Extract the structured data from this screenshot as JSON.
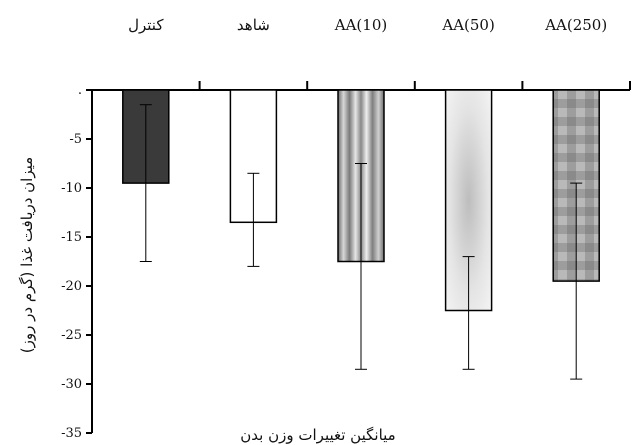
{
  "chart_data": {
    "type": "bar",
    "title": "",
    "xlabel": "میانگین تغییرات وزن بدن",
    "ylabel": "میزان دریافت غذا (گرم در روز)",
    "categories": [
      "کنترل",
      "شاهد",
      "AA(10)",
      "AA(50)",
      "AA(250)"
    ],
    "values": [
      -9.5,
      -13.5,
      -17.5,
      -22.5,
      -19.5
    ],
    "error_low": [
      -17.5,
      -18.0,
      -28.5,
      -28.5,
      -29.5
    ],
    "error_high": [
      -1.5,
      -8.5,
      -7.5,
      -17.0,
      -9.5
    ],
    "ylim": [
      -35,
      0
    ],
    "yticks": [
      0,
      -5,
      -10,
      -15,
      -20,
      -25,
      -30,
      -35
    ],
    "ytick_labels": [
      ".",
      "-5",
      "-10",
      "-15",
      "-20",
      "-25",
      "-30",
      "-35"
    ],
    "grid": false,
    "legend": "none",
    "x_axis_position": "top"
  },
  "colors": {
    "bar_fills": [
      "#3a3a3a",
      "#ffffff",
      "vertical-gradient-gray",
      "radial-light-gray",
      "checker-gray"
    ],
    "axis": "#000000"
  }
}
